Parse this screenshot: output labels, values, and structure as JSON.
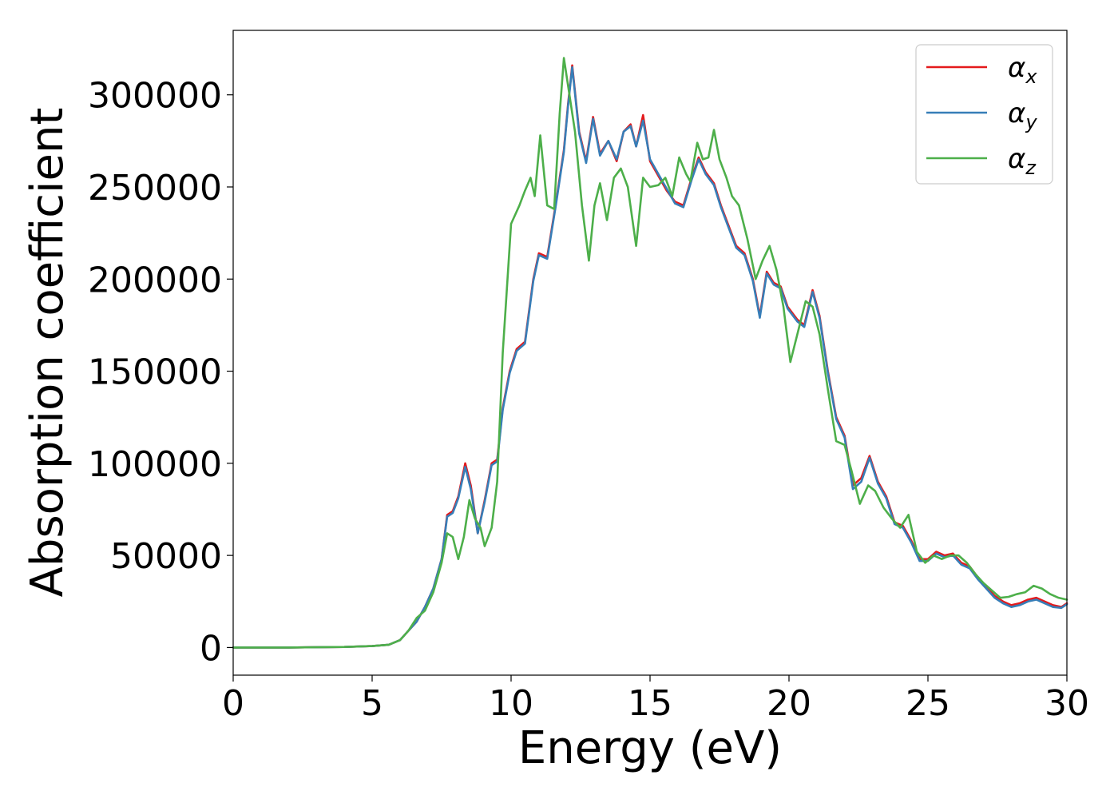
{
  "chart_data": {
    "type": "line",
    "title": "",
    "xlabel": "Energy (eV)",
    "ylabel": "Absorption coefficient",
    "xlim": [
      0,
      30
    ],
    "ylim": [
      -15000,
      335000
    ],
    "xticks": [
      0,
      5,
      10,
      15,
      20,
      25,
      30
    ],
    "yticks": [
      0,
      50000,
      100000,
      150000,
      200000,
      250000,
      300000
    ],
    "xtick_labels": [
      "0",
      "5",
      "10",
      "15",
      "20",
      "25",
      "30"
    ],
    "ytick_labels": [
      "0",
      "50000",
      "100000",
      "150000",
      "200000",
      "250000",
      "300000"
    ],
    "grid": false,
    "legend_position": "top-right",
    "series": [
      {
        "name": "α",
        "subscript": "x",
        "color": "#e41a1c",
        "points": [
          [
            0,
            0
          ],
          [
            2,
            0
          ],
          [
            4,
            300
          ],
          [
            5,
            800
          ],
          [
            5.6,
            1500
          ],
          [
            6,
            4000
          ],
          [
            6.3,
            9000
          ],
          [
            6.6,
            14000
          ],
          [
            6.9,
            22000
          ],
          [
            7.2,
            32000
          ],
          [
            7.5,
            48000
          ],
          [
            7.7,
            72000
          ],
          [
            7.9,
            74000
          ],
          [
            8.1,
            82000
          ],
          [
            8.35,
            100000
          ],
          [
            8.55,
            88000
          ],
          [
            8.8,
            62000
          ],
          [
            9.05,
            80000
          ],
          [
            9.3,
            100000
          ],
          [
            9.5,
            102000
          ],
          [
            9.7,
            130000
          ],
          [
            9.95,
            150000
          ],
          [
            10.2,
            162000
          ],
          [
            10.5,
            166000
          ],
          [
            10.8,
            200000
          ],
          [
            11.0,
            214000
          ],
          [
            11.3,
            212000
          ],
          [
            11.6,
            240000
          ],
          [
            11.9,
            270000
          ],
          [
            12.05,
            295000
          ],
          [
            12.2,
            316000
          ],
          [
            12.45,
            280000
          ],
          [
            12.7,
            264000
          ],
          [
            12.95,
            288000
          ],
          [
            13.2,
            268000
          ],
          [
            13.5,
            275000
          ],
          [
            13.8,
            264000
          ],
          [
            14.05,
            280000
          ],
          [
            14.3,
            284000
          ],
          [
            14.5,
            272000
          ],
          [
            14.75,
            289000
          ],
          [
            15.0,
            264000
          ],
          [
            15.3,
            256000
          ],
          [
            15.6,
            248000
          ],
          [
            15.9,
            242000
          ],
          [
            16.2,
            240000
          ],
          [
            16.5,
            255000
          ],
          [
            16.75,
            266000
          ],
          [
            17.0,
            258000
          ],
          [
            17.3,
            252000
          ],
          [
            17.55,
            240000
          ],
          [
            17.8,
            230000
          ],
          [
            18.1,
            218000
          ],
          [
            18.4,
            214000
          ],
          [
            18.7,
            200000
          ],
          [
            18.95,
            180000
          ],
          [
            19.2,
            204000
          ],
          [
            19.45,
            198000
          ],
          [
            19.7,
            196000
          ],
          [
            19.95,
            185000
          ],
          [
            20.3,
            178000
          ],
          [
            20.55,
            175000
          ],
          [
            20.85,
            194000
          ],
          [
            21.1,
            180000
          ],
          [
            21.4,
            150000
          ],
          [
            21.7,
            125000
          ],
          [
            22.0,
            115000
          ],
          [
            22.3,
            88000
          ],
          [
            22.6,
            92000
          ],
          [
            22.9,
            104000
          ],
          [
            23.2,
            90000
          ],
          [
            23.5,
            82000
          ],
          [
            23.8,
            68000
          ],
          [
            24.1,
            66000
          ],
          [
            24.4,
            58000
          ],
          [
            24.7,
            48000
          ],
          [
            25.0,
            48000
          ],
          [
            25.3,
            52000
          ],
          [
            25.6,
            50000
          ],
          [
            25.9,
            51000
          ],
          [
            26.2,
            46000
          ],
          [
            26.5,
            44000
          ],
          [
            26.8,
            38000
          ],
          [
            27.1,
            33000
          ],
          [
            27.4,
            28000
          ],
          [
            27.7,
            25000
          ],
          [
            28.0,
            23000
          ],
          [
            28.3,
            24000
          ],
          [
            28.6,
            26000
          ],
          [
            28.9,
            27000
          ],
          [
            29.2,
            25000
          ],
          [
            29.5,
            23000
          ],
          [
            29.8,
            22000
          ],
          [
            30,
            24000
          ]
        ]
      },
      {
        "name": "α",
        "subscript": "y",
        "color": "#377eb8",
        "points": [
          [
            0,
            0
          ],
          [
            2,
            0
          ],
          [
            4,
            300
          ],
          [
            5,
            800
          ],
          [
            5.6,
            1500
          ],
          [
            6,
            4000
          ],
          [
            6.3,
            9000
          ],
          [
            6.6,
            14000
          ],
          [
            6.9,
            22000
          ],
          [
            7.2,
            32000
          ],
          [
            7.5,
            48000
          ],
          [
            7.7,
            71000
          ],
          [
            7.9,
            73000
          ],
          [
            8.1,
            81000
          ],
          [
            8.35,
            98000
          ],
          [
            8.55,
            86000
          ],
          [
            8.8,
            62000
          ],
          [
            9.05,
            79000
          ],
          [
            9.3,
            99000
          ],
          [
            9.5,
            101000
          ],
          [
            9.7,
            129000
          ],
          [
            9.95,
            149000
          ],
          [
            10.2,
            161000
          ],
          [
            10.5,
            165000
          ],
          [
            10.8,
            199000
          ],
          [
            11.0,
            213000
          ],
          [
            11.3,
            211000
          ],
          [
            11.6,
            239000
          ],
          [
            11.9,
            269000
          ],
          [
            12.05,
            294000
          ],
          [
            12.2,
            315000
          ],
          [
            12.45,
            279000
          ],
          [
            12.7,
            263000
          ],
          [
            12.95,
            287000
          ],
          [
            13.2,
            267000
          ],
          [
            13.5,
            275000
          ],
          [
            13.8,
            265000
          ],
          [
            14.05,
            280000
          ],
          [
            14.3,
            283000
          ],
          [
            14.5,
            272000
          ],
          [
            14.75,
            286000
          ],
          [
            15.0,
            265000
          ],
          [
            15.3,
            257000
          ],
          [
            15.6,
            249000
          ],
          [
            15.9,
            241000
          ],
          [
            16.2,
            239000
          ],
          [
            16.5,
            254000
          ],
          [
            16.75,
            265000
          ],
          [
            17.0,
            257000
          ],
          [
            17.3,
            251000
          ],
          [
            17.55,
            239000
          ],
          [
            17.8,
            229000
          ],
          [
            18.1,
            217000
          ],
          [
            18.4,
            213000
          ],
          [
            18.7,
            199000
          ],
          [
            18.95,
            179000
          ],
          [
            19.2,
            203000
          ],
          [
            19.45,
            197000
          ],
          [
            19.7,
            195000
          ],
          [
            19.95,
            184000
          ],
          [
            20.3,
            177000
          ],
          [
            20.55,
            174000
          ],
          [
            20.85,
            193000
          ],
          [
            21.1,
            179000
          ],
          [
            21.4,
            149000
          ],
          [
            21.7,
            124000
          ],
          [
            22.0,
            114000
          ],
          [
            22.3,
            86000
          ],
          [
            22.6,
            90000
          ],
          [
            22.9,
            103000
          ],
          [
            23.2,
            89000
          ],
          [
            23.5,
            81000
          ],
          [
            23.8,
            67000
          ],
          [
            24.1,
            65000
          ],
          [
            24.4,
            57000
          ],
          [
            24.7,
            47000
          ],
          [
            25.0,
            47000
          ],
          [
            25.3,
            51000
          ],
          [
            25.6,
            49000
          ],
          [
            25.9,
            50000
          ],
          [
            26.2,
            45000
          ],
          [
            26.5,
            43000
          ],
          [
            26.8,
            37000
          ],
          [
            27.1,
            32000
          ],
          [
            27.4,
            27000
          ],
          [
            27.7,
            24000
          ],
          [
            28.0,
            22000
          ],
          [
            28.3,
            23000
          ],
          [
            28.6,
            25000
          ],
          [
            28.9,
            26000
          ],
          [
            29.2,
            24000
          ],
          [
            29.5,
            22000
          ],
          [
            29.8,
            21500
          ],
          [
            30,
            23500
          ]
        ]
      },
      {
        "name": "α",
        "subscript": "z",
        "color": "#4daf4a",
        "points": [
          [
            0,
            0
          ],
          [
            2,
            0
          ],
          [
            4,
            300
          ],
          [
            5,
            800
          ],
          [
            5.6,
            1500
          ],
          [
            6,
            4000
          ],
          [
            6.3,
            9000
          ],
          [
            6.6,
            16000
          ],
          [
            6.9,
            20000
          ],
          [
            7.2,
            30000
          ],
          [
            7.5,
            46000
          ],
          [
            7.7,
            62000
          ],
          [
            7.9,
            60000
          ],
          [
            8.1,
            48000
          ],
          [
            8.3,
            60000
          ],
          [
            8.5,
            80000
          ],
          [
            8.7,
            70000
          ],
          [
            8.9,
            65000
          ],
          [
            9.05,
            55000
          ],
          [
            9.3,
            65000
          ],
          [
            9.5,
            90000
          ],
          [
            9.7,
            160000
          ],
          [
            10.0,
            230000
          ],
          [
            10.3,
            240000
          ],
          [
            10.5,
            248000
          ],
          [
            10.7,
            255000
          ],
          [
            10.85,
            245000
          ],
          [
            11.05,
            278000
          ],
          [
            11.3,
            240000
          ],
          [
            11.55,
            238000
          ],
          [
            11.75,
            290000
          ],
          [
            11.9,
            320000
          ],
          [
            12.1,
            300000
          ],
          [
            12.3,
            280000
          ],
          [
            12.55,
            240000
          ],
          [
            12.8,
            210000
          ],
          [
            13.0,
            240000
          ],
          [
            13.2,
            252000
          ],
          [
            13.45,
            232000
          ],
          [
            13.7,
            255000
          ],
          [
            13.95,
            260000
          ],
          [
            14.2,
            250000
          ],
          [
            14.5,
            218000
          ],
          [
            14.75,
            255000
          ],
          [
            15.0,
            250000
          ],
          [
            15.3,
            251000
          ],
          [
            15.55,
            255000
          ],
          [
            15.8,
            245000
          ],
          [
            16.05,
            266000
          ],
          [
            16.3,
            257000
          ],
          [
            16.45,
            253000
          ],
          [
            16.7,
            274000
          ],
          [
            16.9,
            265000
          ],
          [
            17.1,
            266000
          ],
          [
            17.3,
            281000
          ],
          [
            17.5,
            265000
          ],
          [
            17.75,
            255000
          ],
          [
            17.95,
            245000
          ],
          [
            18.2,
            240000
          ],
          [
            18.5,
            222000
          ],
          [
            18.8,
            200000
          ],
          [
            19.05,
            210000
          ],
          [
            19.3,
            218000
          ],
          [
            19.55,
            205000
          ],
          [
            19.8,
            185000
          ],
          [
            20.05,
            155000
          ],
          [
            20.3,
            170000
          ],
          [
            20.6,
            188000
          ],
          [
            20.85,
            185000
          ],
          [
            21.1,
            170000
          ],
          [
            21.4,
            140000
          ],
          [
            21.7,
            112000
          ],
          [
            22.0,
            110000
          ],
          [
            22.25,
            96000
          ],
          [
            22.55,
            78000
          ],
          [
            22.85,
            88000
          ],
          [
            23.1,
            85000
          ],
          [
            23.4,
            76000
          ],
          [
            23.7,
            70000
          ],
          [
            24.0,
            65000
          ],
          [
            24.3,
            72000
          ],
          [
            24.6,
            52000
          ],
          [
            24.9,
            46000
          ],
          [
            25.2,
            50000
          ],
          [
            25.5,
            48000
          ],
          [
            25.8,
            50000
          ],
          [
            26.1,
            50000
          ],
          [
            26.4,
            46000
          ],
          [
            26.7,
            40000
          ],
          [
            27.0,
            35000
          ],
          [
            27.3,
            31000
          ],
          [
            27.6,
            27000
          ],
          [
            27.9,
            27500
          ],
          [
            28.2,
            29000
          ],
          [
            28.5,
            30000
          ],
          [
            28.8,
            33500
          ],
          [
            29.1,
            32000
          ],
          [
            29.4,
            29000
          ],
          [
            29.7,
            27000
          ],
          [
            30,
            26000
          ]
        ]
      }
    ]
  }
}
